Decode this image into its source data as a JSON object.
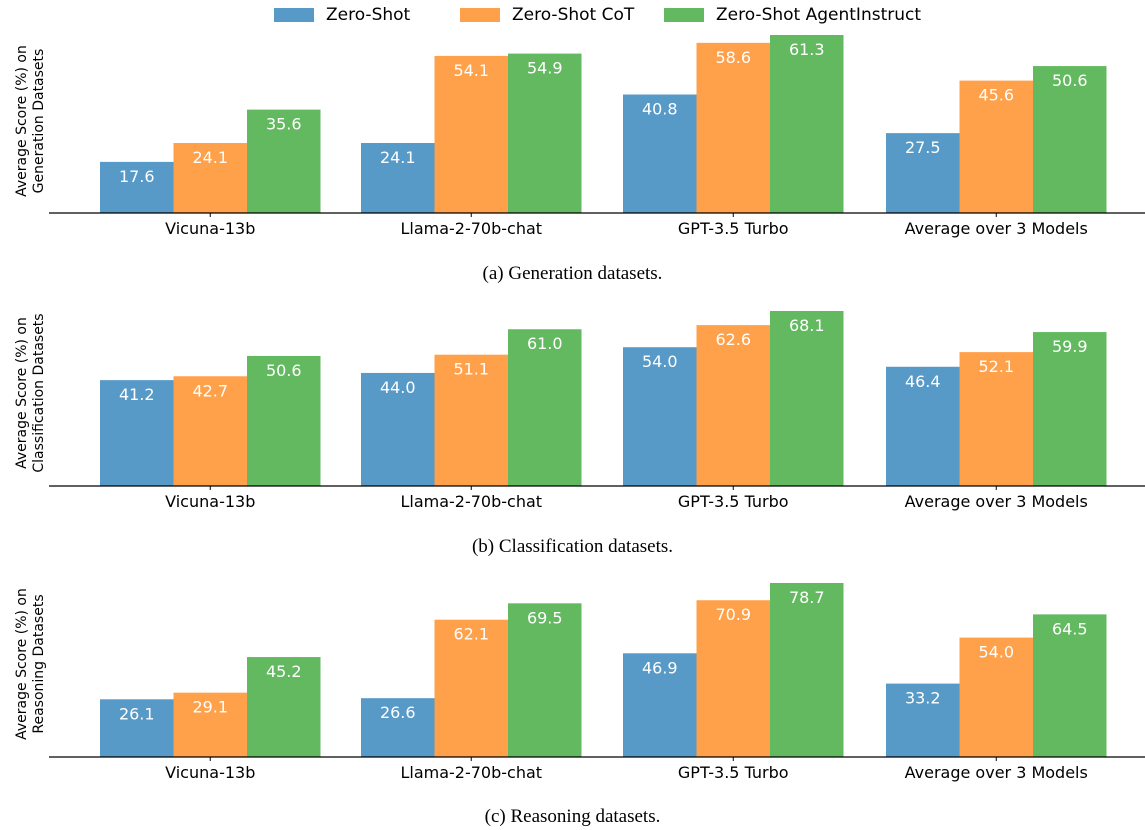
{
  "legend": {
    "items": [
      {
        "name": "Zero-Shot",
        "color": "#5799c7"
      },
      {
        "name": "Zero-Shot CoT",
        "color": "#ffa04a"
      },
      {
        "name": "Zero-Shot AgentInstruct",
        "color": "#63b95f"
      }
    ],
    "placement": "top-center"
  },
  "chart_data": [
    {
      "type": "bar",
      "ylabel": "Average Score (%) on Generation Datasets",
      "ylabel_lines": [
        "Average Score (%) on",
        "Generation Datasets"
      ],
      "caption": "(a) Generation datasets.",
      "categories": [
        "Vicuna-13b",
        "Llama-2-70b-chat",
        "GPT-3.5 Turbo",
        "Average over 3 Models"
      ],
      "series": [
        {
          "name": "Zero-Shot",
          "values": [
            17.6,
            24.1,
            40.8,
            27.5
          ]
        },
        {
          "name": "Zero-Shot CoT",
          "values": [
            24.1,
            54.1,
            58.6,
            45.6
          ]
        },
        {
          "name": "Zero-Shot AgentInstruct",
          "values": [
            35.6,
            54.9,
            61.3,
            50.6
          ]
        }
      ],
      "data_labels": true,
      "grid": false
    },
    {
      "type": "bar",
      "ylabel": "Average Score (%) on Classification Datasets",
      "ylabel_lines": [
        "Average Score (%) on",
        "Classification Datasets"
      ],
      "caption": "(b) Classification datasets.",
      "categories": [
        "Vicuna-13b",
        "Llama-2-70b-chat",
        "GPT-3.5 Turbo",
        "Average over 3 Models"
      ],
      "series": [
        {
          "name": "Zero-Shot",
          "values": [
            41.2,
            44.0,
            54.0,
            46.4
          ]
        },
        {
          "name": "Zero-Shot CoT",
          "values": [
            42.7,
            51.1,
            62.6,
            52.1
          ]
        },
        {
          "name": "Zero-Shot AgentInstruct",
          "values": [
            50.6,
            61.0,
            68.1,
            59.9
          ]
        }
      ],
      "data_labels": true,
      "grid": false
    },
    {
      "type": "bar",
      "ylabel": "Average Score (%) on Reasoning Datasets",
      "ylabel_lines": [
        "Average Score (%) on",
        "Reasoning Datasets"
      ],
      "caption": "(c) Reasoning datasets.",
      "categories": [
        "Vicuna-13b",
        "Llama-2-70b-chat",
        "GPT-3.5 Turbo",
        "Average over 3 Models"
      ],
      "series": [
        {
          "name": "Zero-Shot",
          "values": [
            26.1,
            26.6,
            46.9,
            33.2
          ]
        },
        {
          "name": "Zero-Shot CoT",
          "values": [
            29.1,
            62.1,
            70.9,
            54.0
          ]
        },
        {
          "name": "Zero-Shot AgentInstruct",
          "values": [
            45.2,
            69.5,
            78.7,
            64.5
          ]
        }
      ],
      "data_labels": true,
      "grid": false
    }
  ]
}
